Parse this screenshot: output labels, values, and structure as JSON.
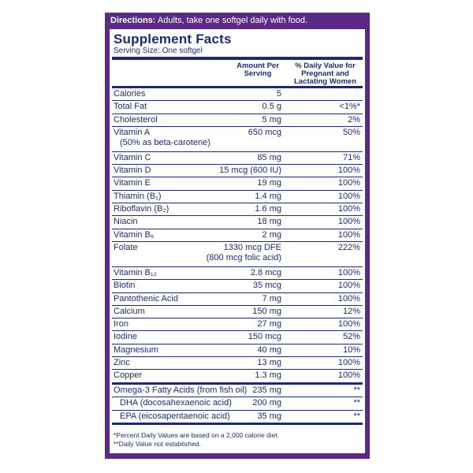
{
  "directions": {
    "label": "Directions:",
    "text": " Adults, take one softgel daily with food."
  },
  "facts": {
    "title": "Supplement Facts",
    "serving_size": "Serving Size: One softgel",
    "col_amount": [
      "Amount Per",
      "Serving"
    ],
    "col_dv": [
      "% Daily Value for",
      "Pregnant and",
      "Lactating Women"
    ]
  },
  "rows": [
    {
      "name": "Calories",
      "amount": "5",
      "dv": ""
    },
    {
      "name": "Total Fat",
      "amount": "0.5 g",
      "dv": "<1%*"
    },
    {
      "name": "Cholesterol",
      "amount": "5 mg",
      "dv": "2%"
    },
    {
      "name": "Vitamin A",
      "sub": "(50% as beta-carotene)",
      "amount": "650 mcg",
      "dv": "50%"
    },
    {
      "name": "Vitamin C",
      "amount": "85 mg",
      "dv": "71%"
    },
    {
      "name": "Vitamin D",
      "amount": "15 mcg (600 IU)",
      "dv": "100%"
    },
    {
      "name": "Vitamin E",
      "amount": "19 mg",
      "dv": "100%"
    },
    {
      "name": "Thiamin (B₁)",
      "amount": "1.4 mg",
      "dv": "100%"
    },
    {
      "name": "Riboflavin (B₂)",
      "amount": "1.6 mg",
      "dv": "100%"
    },
    {
      "name": "Niacin",
      "amount": "18 mg",
      "dv": "100%"
    },
    {
      "name": "Vitamin B₆",
      "amount": "2 mg",
      "dv": "100%"
    },
    {
      "name": "Folate",
      "amount": "1330 mcg DFE",
      "amount2": "(800 mcg folic acid)",
      "dv": "222%"
    },
    {
      "name": "Vitamin B₁₂",
      "amount": "2.8 mcg",
      "dv": "100%"
    },
    {
      "name": "Biotin",
      "amount": "35 mcg",
      "dv": "100%"
    },
    {
      "name": "Pantothenic Acid",
      "amount": "7 mg",
      "dv": "100%"
    },
    {
      "name": "Calcium",
      "amount": "150 mg",
      "dv": "12%"
    },
    {
      "name": "Iron",
      "amount": "27 mg",
      "dv": "100%"
    },
    {
      "name": "Iodine",
      "amount": "150 mcg",
      "dv": "52%"
    },
    {
      "name": "Magnesium",
      "amount": "40 mg",
      "dv": "10%"
    },
    {
      "name": "Zinc",
      "amount": "13 mg",
      "dv": "100%"
    },
    {
      "name": "Copper",
      "amount": "1.3 mg",
      "dv": "100%"
    }
  ],
  "omega": [
    {
      "name": "Omega-3 Fatty Acids (from fish oil)",
      "amount": "235 mg",
      "dv": "**"
    },
    {
      "name": "DHA (docosahexaenoic acid)",
      "amount": "200 mg",
      "dv": "**"
    },
    {
      "name": "EPA (eicosapentaenoic acid)",
      "amount": "35 mg",
      "dv": "**"
    }
  ],
  "footnotes": [
    "*Percent Daily Values are based on a 2,000 calorie diet.",
    "**Daily Value not established."
  ]
}
